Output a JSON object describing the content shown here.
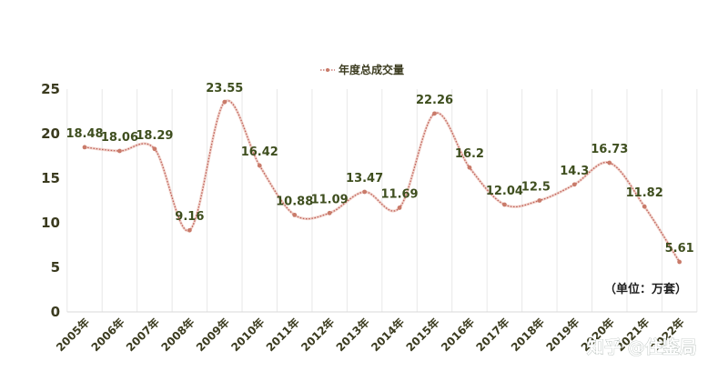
{
  "chart_data": {
    "type": "line",
    "categories": [
      "2005年",
      "2006年",
      "2007年",
      "2008年",
      "2009年",
      "2010年",
      "2011年",
      "2012年",
      "2013年",
      "2014年",
      "2015年",
      "2016年",
      "2017年",
      "2018年",
      "2019年",
      "2020年",
      "2021年",
      "2022年"
    ],
    "series": [
      {
        "name": "年度总成交量",
        "values": [
          18.48,
          18.06,
          18.29,
          9.16,
          23.55,
          16.42,
          10.88,
          11.09,
          13.47,
          11.69,
          22.26,
          16.2,
          12.04,
          12.5,
          14.3,
          16.73,
          11.82,
          5.61
        ]
      }
    ],
    "data_labels": [
      "18.48",
      "18.06",
      "18.29",
      "9.16",
      "23.55",
      "16.42",
      "10.88",
      "11.09",
      "13.47",
      "11.69",
      "22.26",
      "16.2",
      "12.04",
      "12.5",
      "14.3",
      "16.73",
      "11.82",
      "5.61"
    ],
    "ylim": [
      0,
      25
    ],
    "yticks": [
      "0",
      "5",
      "10",
      "15",
      "20",
      "25"
    ],
    "legend_position": "top-center",
    "grid": "vertical",
    "smooth": true,
    "line_style": "dotted",
    "unit_note": "（单位：万套）",
    "colors": {
      "line": "#c0625a",
      "marker": "#c97b6a",
      "label": "#3e4e1e",
      "grid": "#e8e8e8"
    }
  },
  "watermark": "知乎 @住鉴局"
}
